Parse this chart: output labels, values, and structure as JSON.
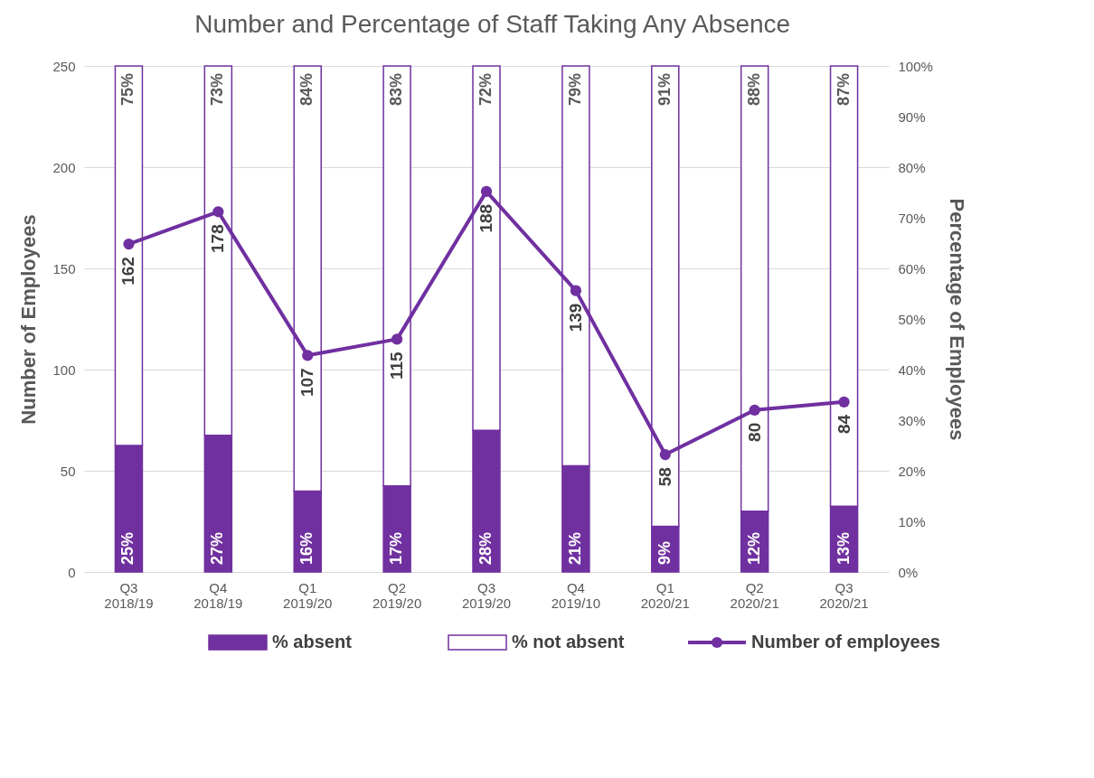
{
  "chart_data": {
    "type": "bar",
    "title": "Number and Percentage of Staff Taking Any Absence",
    "ylabel": "Number of Employees",
    "y2label": "Percentage of Employees",
    "categories": [
      "Q3 2018/19",
      "Q4 2018/19",
      "Q1 2019/20",
      "Q2 2019/20",
      "Q3 2019/20",
      "Q4 2019/10",
      "Q1 2020/21",
      "Q2 2020/21",
      "Q3 2020/21"
    ],
    "stacked": true,
    "grid": "y",
    "legend": "bottom",
    "marker": "circle",
    "line_style": "solid",
    "ylim": [
      0,
      250
    ],
    "yticks": [
      0,
      50,
      100,
      150,
      200,
      250
    ],
    "y2lim": [
      0,
      100
    ],
    "y2ticks": [
      {
        "value": 0,
        "label": "0%"
      },
      {
        "value": 10,
        "label": "10%"
      },
      {
        "value": 20,
        "label": "20%"
      },
      {
        "value": 30,
        "label": "30%"
      },
      {
        "value": 40,
        "label": "40%"
      },
      {
        "value": 50,
        "label": "50%"
      },
      {
        "value": 60,
        "label": "60%"
      },
      {
        "value": 70,
        "label": "70%"
      },
      {
        "value": 80,
        "label": "80%"
      },
      {
        "value": 90,
        "label": "90%"
      },
      {
        "value": 100,
        "label": "100%"
      }
    ],
    "series": [
      {
        "name": "% absent",
        "axis": "y2",
        "color": "#7030a0",
        "values": [
          25,
          27,
          16,
          17,
          28,
          21,
          9,
          12,
          13
        ],
        "value_labels": [
          "25%",
          "27%",
          "16%",
          "17%",
          "28%",
          "21%",
          "9%",
          "12%",
          "13%"
        ]
      },
      {
        "name": "% not absent",
        "axis": "y2",
        "color": "#ffffff",
        "values": [
          75,
          73,
          84,
          83,
          72,
          79,
          91,
          88,
          87
        ],
        "value_labels": [
          "75%",
          "73%",
          "84%",
          "83%",
          "72%",
          "79%",
          "91%",
          "88%",
          "87%"
        ]
      },
      {
        "name": "Number of employees",
        "type": "line",
        "axis": "y",
        "color": "#7030a0",
        "values": [
          162,
          178,
          107,
          115,
          188,
          139,
          58,
          80,
          84
        ],
        "value_labels": [
          "162",
          "178",
          "107",
          "115",
          "188",
          "139",
          "58",
          "80",
          "84"
        ]
      }
    ]
  }
}
